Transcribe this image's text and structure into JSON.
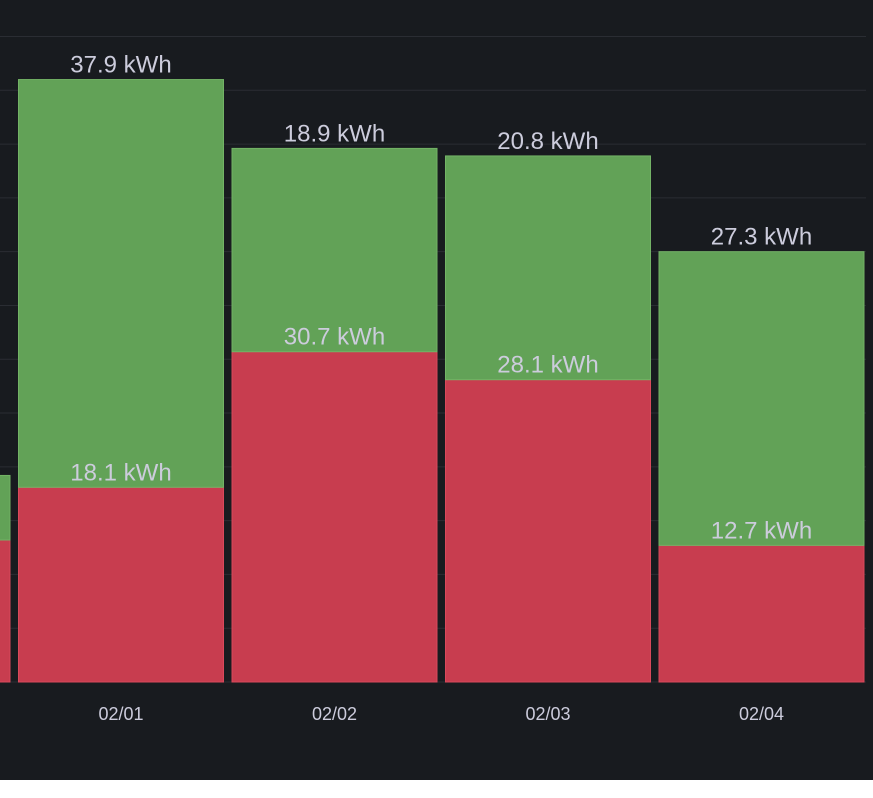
{
  "chart_data": {
    "type": "bar",
    "stacked": true,
    "unit": "kWh",
    "categories": [
      "",
      "02/01",
      "02/02",
      "02/03",
      "02/04"
    ],
    "series": [
      {
        "color": "#c83d4f",
        "values": [
          13.2,
          18.1,
          30.7,
          28.1,
          12.7
        ],
        "labels": [
          "",
          "18.1 kWh",
          "30.7 kWh",
          "28.1 kWh",
          "12.7 kWh"
        ]
      },
      {
        "color": "#62a257",
        "values": [
          6.0,
          37.9,
          18.9,
          20.8,
          27.3
        ],
        "labels": [
          "",
          "37.9 kWh",
          "18.9 kWh",
          "20.8 kWh",
          "27.3 kWh"
        ]
      }
    ],
    "ylim": [
      0,
      62
    ],
    "grid": true,
    "legend": "none"
  }
}
